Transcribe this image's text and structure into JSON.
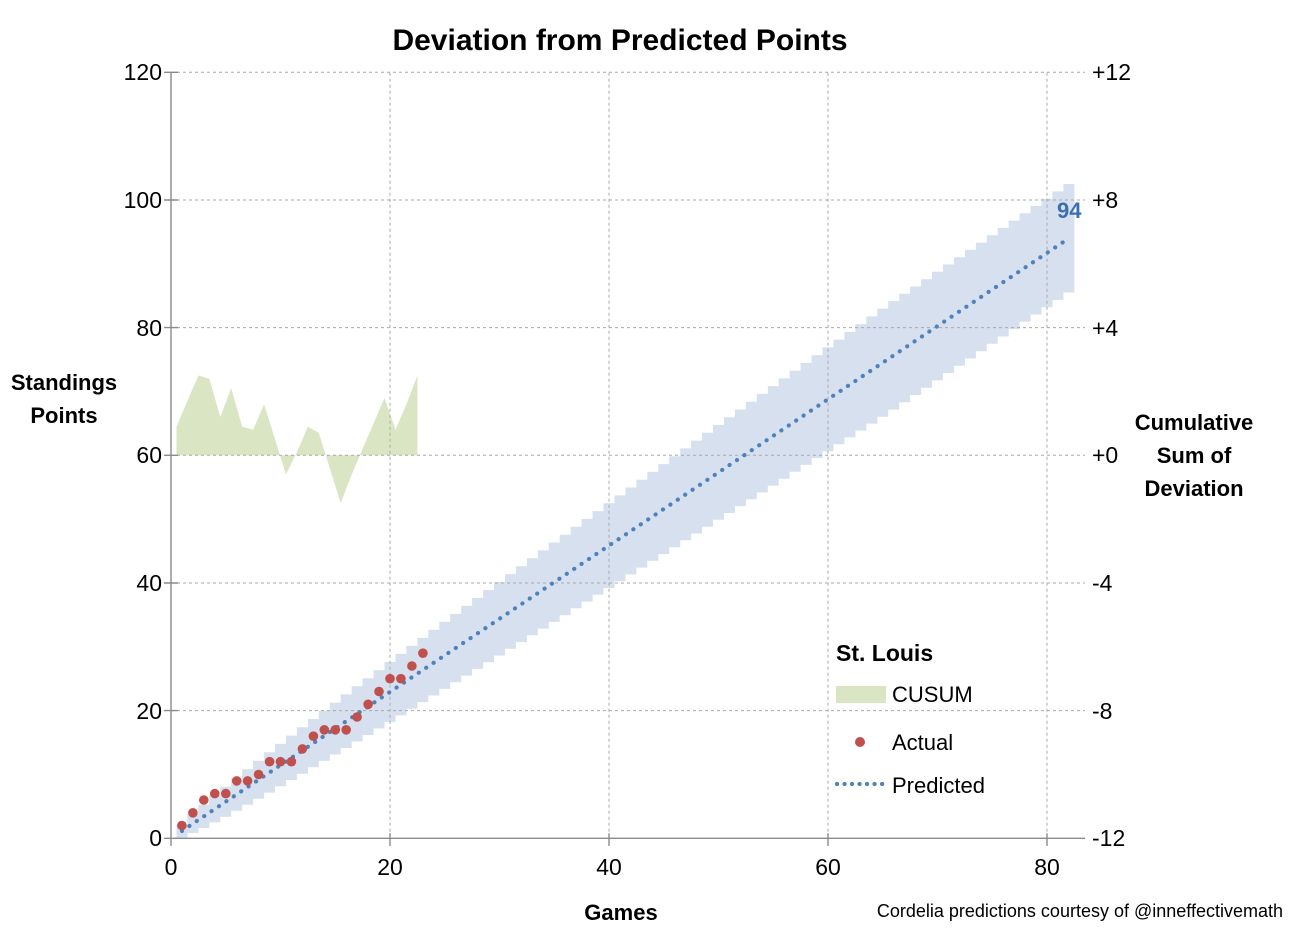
{
  "title": "Deviation from Predicted Points",
  "attribution": "Cordelia predictions courtesy of @inneffectivemath",
  "axes": {
    "left": {
      "title_lines": [
        "Standings",
        "Points"
      ]
    },
    "right": {
      "title_lines": [
        "Cumulative",
        "Sum of",
        "Deviation"
      ]
    },
    "x": {
      "title": "Games"
    }
  },
  "legend": {
    "heading": "St. Louis",
    "items": [
      {
        "label": "CUSUM",
        "swatch": "area",
        "color": "#dae5c3"
      },
      {
        "label": "Actual",
        "swatch": "dot",
        "color": "#c0504d"
      },
      {
        "label": "Predicted",
        "swatch": "dotted-line",
        "color": "#4f81bd"
      }
    ]
  },
  "end_label": {
    "text": "94",
    "color": "#3a70b2"
  },
  "chart_data": {
    "type": "combo",
    "title": "Deviation from Predicted Points",
    "team": "St. Louis",
    "grid": true,
    "legend_position": "inside-lower-right",
    "x_axis": {
      "label": "Games",
      "range": [
        0,
        82
      ],
      "ticks": [
        0,
        20,
        40,
        60,
        80
      ]
    },
    "y_axis_left": {
      "label": "Standings Points",
      "range": [
        0,
        120
      ],
      "ticks": [
        120,
        100,
        80,
        60,
        40,
        20,
        0
      ]
    },
    "y_axis_right": {
      "label": "Cumulative Sum of Deviation",
      "range": [
        -12,
        12
      ],
      "tick_values": [
        12,
        8,
        4,
        0,
        -4,
        -8,
        -12
      ],
      "tick_labels": [
        "+12",
        "+8",
        "+4",
        "+0",
        "-4",
        "-8",
        "-12"
      ]
    },
    "games": [
      1,
      2,
      3,
      4,
      5,
      6,
      7,
      8,
      9,
      10,
      11,
      12,
      13,
      14,
      15,
      16,
      17,
      18,
      19,
      20,
      21,
      22,
      23
    ],
    "series": [
      {
        "name": "CUSUM",
        "type": "area",
        "axis": "right",
        "color": "#dae5c3",
        "values": [
          0.9,
          1.7,
          2.5,
          2.4,
          1.2,
          2.1,
          0.9,
          0.8,
          1.6,
          0.5,
          -0.6,
          0.1,
          0.9,
          0.7,
          -0.4,
          -1.5,
          -0.6,
          0.2,
          1.0,
          1.8,
          0.8,
          1.6,
          2.5
        ]
      },
      {
        "name": "Actual",
        "type": "scatter",
        "axis": "left",
        "color": "#c0504d",
        "values": [
          2,
          4,
          6,
          7,
          7,
          9,
          9,
          10,
          12,
          12,
          12,
          14,
          16,
          17,
          17,
          17,
          19,
          21,
          23,
          25,
          25,
          27,
          29
        ]
      },
      {
        "name": "Predicted",
        "type": "dotted_line",
        "axis": "left",
        "color": "#4f81bd",
        "start": {
          "game": 1,
          "points": 1.15
        },
        "end": {
          "game": 82,
          "points": 94
        },
        "end_label": "94"
      },
      {
        "name": "Prediction band",
        "type": "stepped_band",
        "axis": "left",
        "color": "#d6e0ef",
        "games_range": [
          1,
          82
        ],
        "center_rate_points_per_game": 1.1463,
        "half_width_sqrt_coef": 1.05,
        "half_width_cap": 8.5
      }
    ]
  }
}
